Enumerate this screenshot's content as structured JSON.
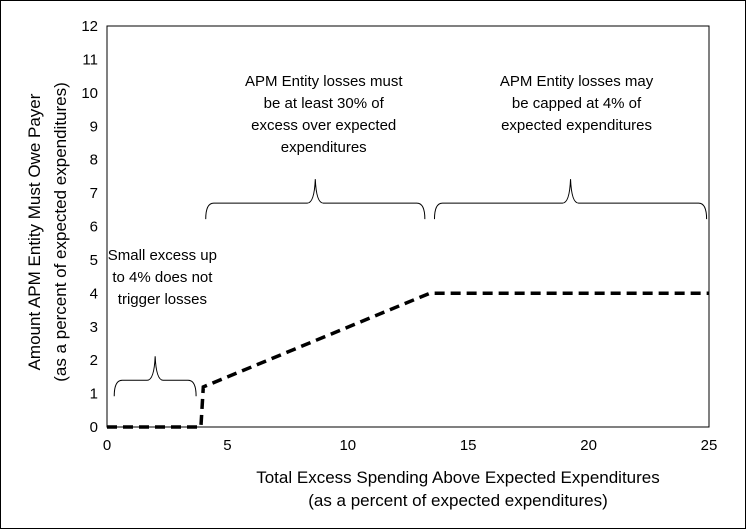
{
  "chart_data": {
    "type": "line",
    "xlabel": [
      "Total Excess Spending Above Expected Expenditures",
      "(as a percent of expected expenditures)"
    ],
    "ylabel": [
      "Amount APM Entity Must Owe Payer",
      "(as a percent of expected expenditures)"
    ],
    "xlim": [
      0,
      25
    ],
    "ylim": [
      0,
      12
    ],
    "xticks": [
      0,
      5,
      10,
      15,
      20,
      25
    ],
    "yticks": [
      0,
      1,
      2,
      3,
      4,
      5,
      6,
      7,
      8,
      9,
      10,
      11,
      12
    ],
    "grid": false,
    "legend": "none",
    "line_color": "#000000",
    "line_style": "dashed",
    "series": [
      {
        "x": [
          0,
          3.9,
          4,
          13.4,
          25
        ],
        "y": [
          0,
          0,
          1.2,
          4,
          4
        ]
      }
    ],
    "annotations": [
      {
        "lines": [
          "Small excess up",
          "to 4% does not",
          "trigger losses"
        ],
        "text_x": 2.3,
        "text_y": 5,
        "brace_from": 0.3,
        "brace_to": 3.7,
        "brace_y": 1.4
      },
      {
        "lines": [
          "APM Entity losses must",
          "be at least 30% of",
          "excess over expected",
          "expenditures"
        ],
        "text_x": 9,
        "text_y": 10.2,
        "brace_from": 4.1,
        "brace_to": 13.2,
        "brace_y": 6.7
      },
      {
        "lines": [
          "APM Entity losses may",
          "be capped at 4% of",
          "expected expenditures"
        ],
        "text_x": 19.5,
        "text_y": 10.2,
        "brace_from": 13.6,
        "brace_to": 24.9,
        "brace_y": 6.7
      }
    ]
  }
}
